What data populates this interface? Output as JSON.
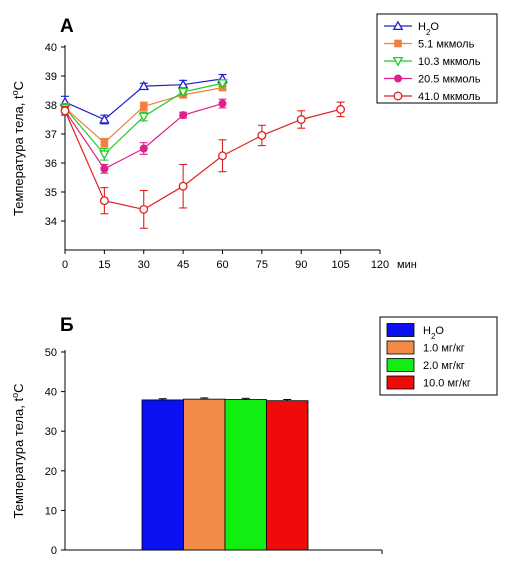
{
  "chart_data": [
    {
      "panel": "А",
      "type": "line",
      "xlabel_unit": "мин",
      "ylabel": "Температура тела, t°C",
      "ylabel_main": "Температура тела, t",
      "ylabel_sup": "o",
      "ylabel_tail": "C",
      "xlim": [
        0,
        120
      ],
      "ylim": [
        33,
        40
      ],
      "xticks": [
        0,
        15,
        30,
        45,
        60,
        75,
        90,
        105,
        120
      ],
      "yticks": [
        34,
        35,
        36,
        37,
        38,
        39,
        40
      ],
      "grid": false,
      "legend_position": "top-right",
      "series": [
        {
          "name": "H2O",
          "name_main": "H",
          "name_sub": "2",
          "name_tail": "O",
          "color": "#1f1fd0",
          "marker": "triangle-up-open",
          "x": [
            0,
            15,
            30,
            45,
            60
          ],
          "y": [
            38.1,
            37.5,
            38.65,
            38.7,
            38.9
          ],
          "err": [
            0.2,
            0.15,
            0.1,
            0.15,
            0.15
          ]
        },
        {
          "name": "5.1 мкмоль",
          "color": "#f08040",
          "marker": "square-filled",
          "x": [
            0,
            15,
            30,
            45,
            60
          ],
          "y": [
            37.9,
            36.7,
            37.95,
            38.35,
            38.6
          ],
          "err": [
            0.15,
            0.15,
            0.15,
            0.1,
            0.1
          ]
        },
        {
          "name": "10.3 мкмоль",
          "color": "#22cc22",
          "marker": "triangle-down-open",
          "x": [
            0,
            15,
            30,
            45,
            60
          ],
          "y": [
            37.9,
            36.3,
            37.6,
            38.45,
            38.75
          ],
          "err": [
            0.15,
            0.2,
            0.15,
            0.1,
            0.1
          ]
        },
        {
          "name": "20.5 мкмоль",
          "color": "#e0208a",
          "marker": "circle-filled",
          "x": [
            0,
            15,
            30,
            45,
            60
          ],
          "y": [
            37.8,
            35.8,
            36.5,
            37.65,
            38.05
          ],
          "err": [
            0.15,
            0.15,
            0.2,
            0.1,
            0.15
          ]
        },
        {
          "name": "41.0 мкмоль",
          "color": "#e02020",
          "marker": "circle-open",
          "x": [
            0,
            15,
            30,
            45,
            60,
            75,
            90,
            105
          ],
          "y": [
            37.8,
            34.7,
            34.4,
            35.2,
            36.25,
            36.95,
            37.5,
            37.85
          ],
          "err": [
            0.15,
            0.45,
            0.65,
            0.75,
            0.55,
            0.35,
            0.3,
            0.25
          ]
        }
      ]
    },
    {
      "panel": "Б",
      "type": "bar",
      "ylabel": "Температура тела, t°C",
      "ylabel_main": "Температура тела, t",
      "ylabel_sup": "o",
      "ylabel_tail": "C",
      "ylim": [
        0,
        50
      ],
      "yticks": [
        0,
        10,
        20,
        30,
        40,
        50
      ],
      "grid": false,
      "legend_position": "top-right",
      "categories": [
        "H2O",
        "1.0 мг/кг",
        "2.0 мг/кг",
        "10.0 мг/кг"
      ],
      "series": [
        {
          "name": "H2O",
          "name_main": "H",
          "name_sub": "2",
          "name_tail": "O",
          "color": "#0a10f0",
          "value": 37.9,
          "err": 0.3
        },
        {
          "name": "1.0 мг/кг",
          "color": "#f38a48",
          "value": 38.1,
          "err": 0.3
        },
        {
          "name": "2.0 мг/кг",
          "color": "#11ee11",
          "value": 38.0,
          "err": 0.3
        },
        {
          "name": "10.0 мг/кг",
          "color": "#f00a0a",
          "value": 37.7,
          "err": 0.3
        }
      ]
    }
  ]
}
